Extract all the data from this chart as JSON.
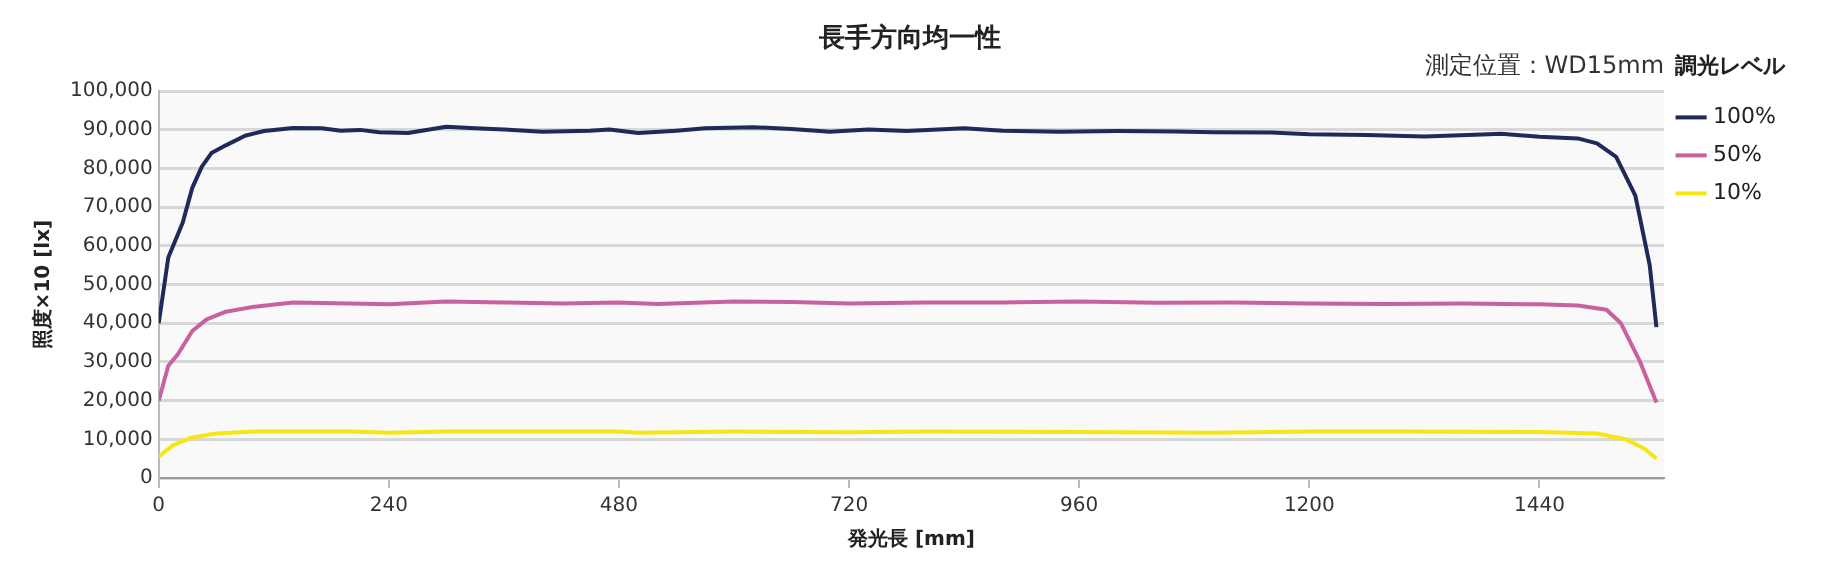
{
  "chart_data": {
    "type": "line",
    "title": "長手方向均一性",
    "xlabel": "発光長 [mm]",
    "ylabel": "照度×10 [lx]",
    "legend_title": "調光レベル",
    "annotations": [
      "測定位置：WD15mm"
    ],
    "xlim": [
      0,
      1570
    ],
    "xticks": [
      0,
      240,
      480,
      720,
      960,
      1200,
      1440
    ],
    "ylim": [
      0,
      100000
    ],
    "yticks": [
      {
        "value": 0,
        "label": "0"
      },
      {
        "value": 10000,
        "label": "10,000"
      },
      {
        "value": 20000,
        "label": "20,000"
      },
      {
        "value": 30000,
        "label": "30,000"
      },
      {
        "value": 40000,
        "label": "40,000"
      },
      {
        "value": 50000,
        "label": "50,000"
      },
      {
        "value": 60000,
        "label": "60,000"
      },
      {
        "value": 70000,
        "label": "70,000"
      },
      {
        "value": 80000,
        "label": "80,000"
      },
      {
        "value": 90000,
        "label": "90,000"
      },
      {
        "value": 100000,
        "label": "100,000"
      }
    ],
    "grid": "y",
    "legend": "right",
    "marker": "none",
    "line_style": "solid",
    "series": [
      {
        "name": "100%",
        "color": "#1f2a5a",
        "x": [
          0,
          10,
          25,
          35,
          45,
          55,
          70,
          90,
          110,
          140,
          170,
          190,
          210,
          230,
          260,
          300,
          330,
          360,
          400,
          450,
          470,
          500,
          540,
          570,
          620,
          660,
          700,
          740,
          780,
          840,
          880,
          940,
          1000,
          1060,
          1100,
          1160,
          1200,
          1260,
          1320,
          1380,
          1400,
          1440,
          1480,
          1500,
          1520,
          1540,
          1555,
          1562
        ],
        "values": [
          40000,
          57000,
          66000,
          75000,
          80500,
          84000,
          86000,
          88500,
          89700,
          90500,
          90400,
          89800,
          90000,
          89400,
          89200,
          90800,
          90400,
          90100,
          89500,
          89800,
          90100,
          89200,
          89800,
          90400,
          90700,
          90200,
          89500,
          90100,
          89700,
          90400,
          89800,
          89500,
          89700,
          89600,
          89400,
          89300,
          88900,
          88700,
          88300,
          88800,
          89000,
          88200,
          87800,
          86500,
          83000,
          73000,
          55000,
          39000
        ]
      },
      {
        "name": "50%",
        "color": "#c9609f",
        "x": [
          0,
          10,
          20,
          35,
          50,
          70,
          100,
          140,
          200,
          240,
          300,
          360,
          420,
          480,
          520,
          600,
          660,
          720,
          800,
          880,
          960,
          1040,
          1120,
          1200,
          1280,
          1360,
          1440,
          1480,
          1510,
          1525,
          1545,
          1562
        ],
        "values": [
          20000,
          29000,
          32000,
          38000,
          41000,
          43000,
          44300,
          45400,
          45100,
          44900,
          45600,
          45400,
          45100,
          45400,
          45000,
          45600,
          45500,
          45100,
          45400,
          45400,
          45600,
          45300,
          45400,
          45100,
          45000,
          45100,
          44900,
          44600,
          43500,
          40000,
          30000,
          19500
        ]
      },
      {
        "name": "10%",
        "color": "#f5e614",
        "x": [
          0,
          15,
          35,
          60,
          100,
          200,
          240,
          300,
          480,
          500,
          600,
          720,
          800,
          960,
          1100,
          1200,
          1300,
          1440,
          1500,
          1530,
          1550,
          1562
        ],
        "values": [
          5500,
          8500,
          10500,
          11500,
          12000,
          12000,
          11700,
          12000,
          12000,
          11700,
          12000,
          11800,
          12000,
          11900,
          11700,
          12000,
          12000,
          11900,
          11500,
          10000,
          7500,
          5000
        ]
      }
    ]
  }
}
